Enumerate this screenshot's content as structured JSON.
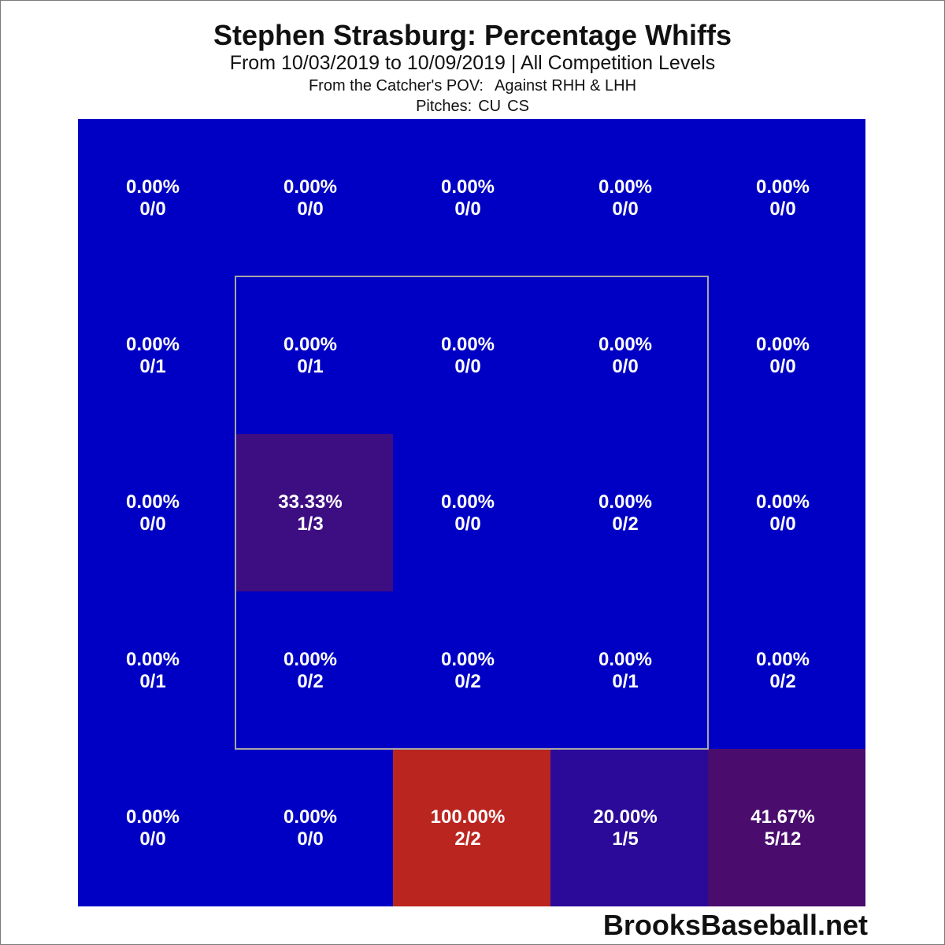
{
  "chart_data": {
    "type": "heatmap",
    "title": "Stephen Strasburg: Percentage Whiffs",
    "subtitle": "From 10/03/2019 to 10/09/2019 | All Competition Levels",
    "pov_label": "From the Catcher's POV:",
    "batters_label": "Against RHH & LHH",
    "pitches_label": "Pitches:",
    "pitch_types": [
      "CU",
      "CS"
    ],
    "rows": 5,
    "cols": 5,
    "strike_zone": "inner 3x3 cells (rows 2-4, columns 2-4)",
    "cells": [
      [
        {
          "pct": "0.00%",
          "count": "0/0",
          "color": "#0000c4"
        },
        {
          "pct": "0.00%",
          "count": "0/0",
          "color": "#0000c4"
        },
        {
          "pct": "0.00%",
          "count": "0/0",
          "color": "#0000c4"
        },
        {
          "pct": "0.00%",
          "count": "0/0",
          "color": "#0000c4"
        },
        {
          "pct": "0.00%",
          "count": "0/0",
          "color": "#0000c4"
        }
      ],
      [
        {
          "pct": "0.00%",
          "count": "0/1",
          "color": "#0000c4"
        },
        {
          "pct": "0.00%",
          "count": "0/1",
          "color": "#0000c4"
        },
        {
          "pct": "0.00%",
          "count": "0/0",
          "color": "#0000c4"
        },
        {
          "pct": "0.00%",
          "count": "0/0",
          "color": "#0000c4"
        },
        {
          "pct": "0.00%",
          "count": "0/0",
          "color": "#0000c4"
        }
      ],
      [
        {
          "pct": "0.00%",
          "count": "0/0",
          "color": "#0000c4"
        },
        {
          "pct": "33.33%",
          "count": "1/3",
          "color": "#3d0d82"
        },
        {
          "pct": "0.00%",
          "count": "0/0",
          "color": "#0000c4"
        },
        {
          "pct": "0.00%",
          "count": "0/2",
          "color": "#0000c4"
        },
        {
          "pct": "0.00%",
          "count": "0/0",
          "color": "#0000c4"
        }
      ],
      [
        {
          "pct": "0.00%",
          "count": "0/1",
          "color": "#0000c4"
        },
        {
          "pct": "0.00%",
          "count": "0/2",
          "color": "#0000c4"
        },
        {
          "pct": "0.00%",
          "count": "0/2",
          "color": "#0000c4"
        },
        {
          "pct": "0.00%",
          "count": "0/1",
          "color": "#0000c4"
        },
        {
          "pct": "0.00%",
          "count": "0/2",
          "color": "#0000c4"
        }
      ],
      [
        {
          "pct": "0.00%",
          "count": "0/0",
          "color": "#0000c4"
        },
        {
          "pct": "0.00%",
          "count": "0/0",
          "color": "#0000c4"
        },
        {
          "pct": "100.00%",
          "count": "2/2",
          "color": "#bb2520"
        },
        {
          "pct": "20.00%",
          "count": "1/5",
          "color": "#2b0a99"
        },
        {
          "pct": "41.67%",
          "count": "5/12",
          "color": "#4a0d6e"
        }
      ]
    ]
  },
  "colors": {
    "zone_border": "#a6a6a6"
  },
  "watermark": "BrooksBaseball.net"
}
